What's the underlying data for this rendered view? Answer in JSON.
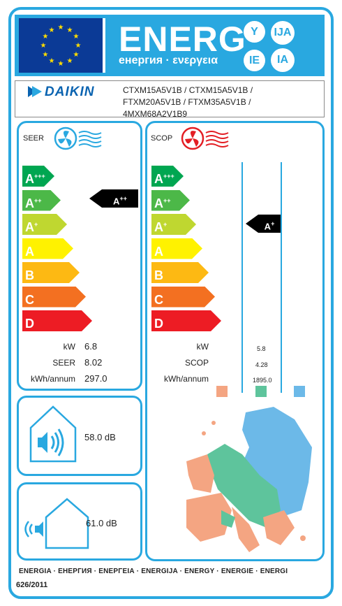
{
  "header": {
    "energ": "ENERG",
    "subtitle": "енергия · ενεργεια",
    "lang_codes": [
      "Y",
      "IJA",
      "IE",
      "IA"
    ]
  },
  "brand": "DAIKIN",
  "models": [
    "CTXM15A5V1B / CTXM15A5V1B /",
    "FTXM20A5V1B / FTXM35A5V1B /",
    "4MXM68A2V1B9"
  ],
  "seer_panel": {
    "title": "SEER",
    "rating": "A",
    "rating_sup": "++",
    "kw_label": "kW",
    "kw_value": "6.8",
    "seer_label": "SEER",
    "seer_value": "8.02",
    "kwh_label": "kWh/annum",
    "kwh_value": "297.0"
  },
  "scop_panel": {
    "title": "SCOP",
    "rating": "A",
    "rating_sup": "+",
    "kw_label": "kW",
    "kw_value": "5.8",
    "scop_label": "SCOP",
    "scop_value": "4.28",
    "kwh_label": "kWh/annum",
    "kwh_value": "1895.0"
  },
  "classes": [
    {
      "letter": "A",
      "sup": "+++",
      "color": "#00a651"
    },
    {
      "letter": "A",
      "sup": "++",
      "color": "#4cb848"
    },
    {
      "letter": "A",
      "sup": "+",
      "color": "#bfd730"
    },
    {
      "letter": "A",
      "sup": "",
      "color": "#fff200"
    },
    {
      "letter": "B",
      "sup": "",
      "color": "#fdb913"
    },
    {
      "letter": "C",
      "sup": "",
      "color": "#f37021"
    },
    {
      "letter": "D",
      "sup": "",
      "color": "#ed1c24"
    }
  ],
  "noise_indoor": "58.0 dB",
  "noise_outdoor": "61.0 dB",
  "climate_colors": {
    "colder": "#f4a582",
    "average": "#5ec49c",
    "warmer": "#6cb9e8"
  },
  "footer": "ENERGIA · ЕНЕРГИЯ · ΕΝΕΡΓΕΙΑ · ENERGIJA · ENERGY · ENERGIE · ENERGI",
  "regulation": "626/2011"
}
